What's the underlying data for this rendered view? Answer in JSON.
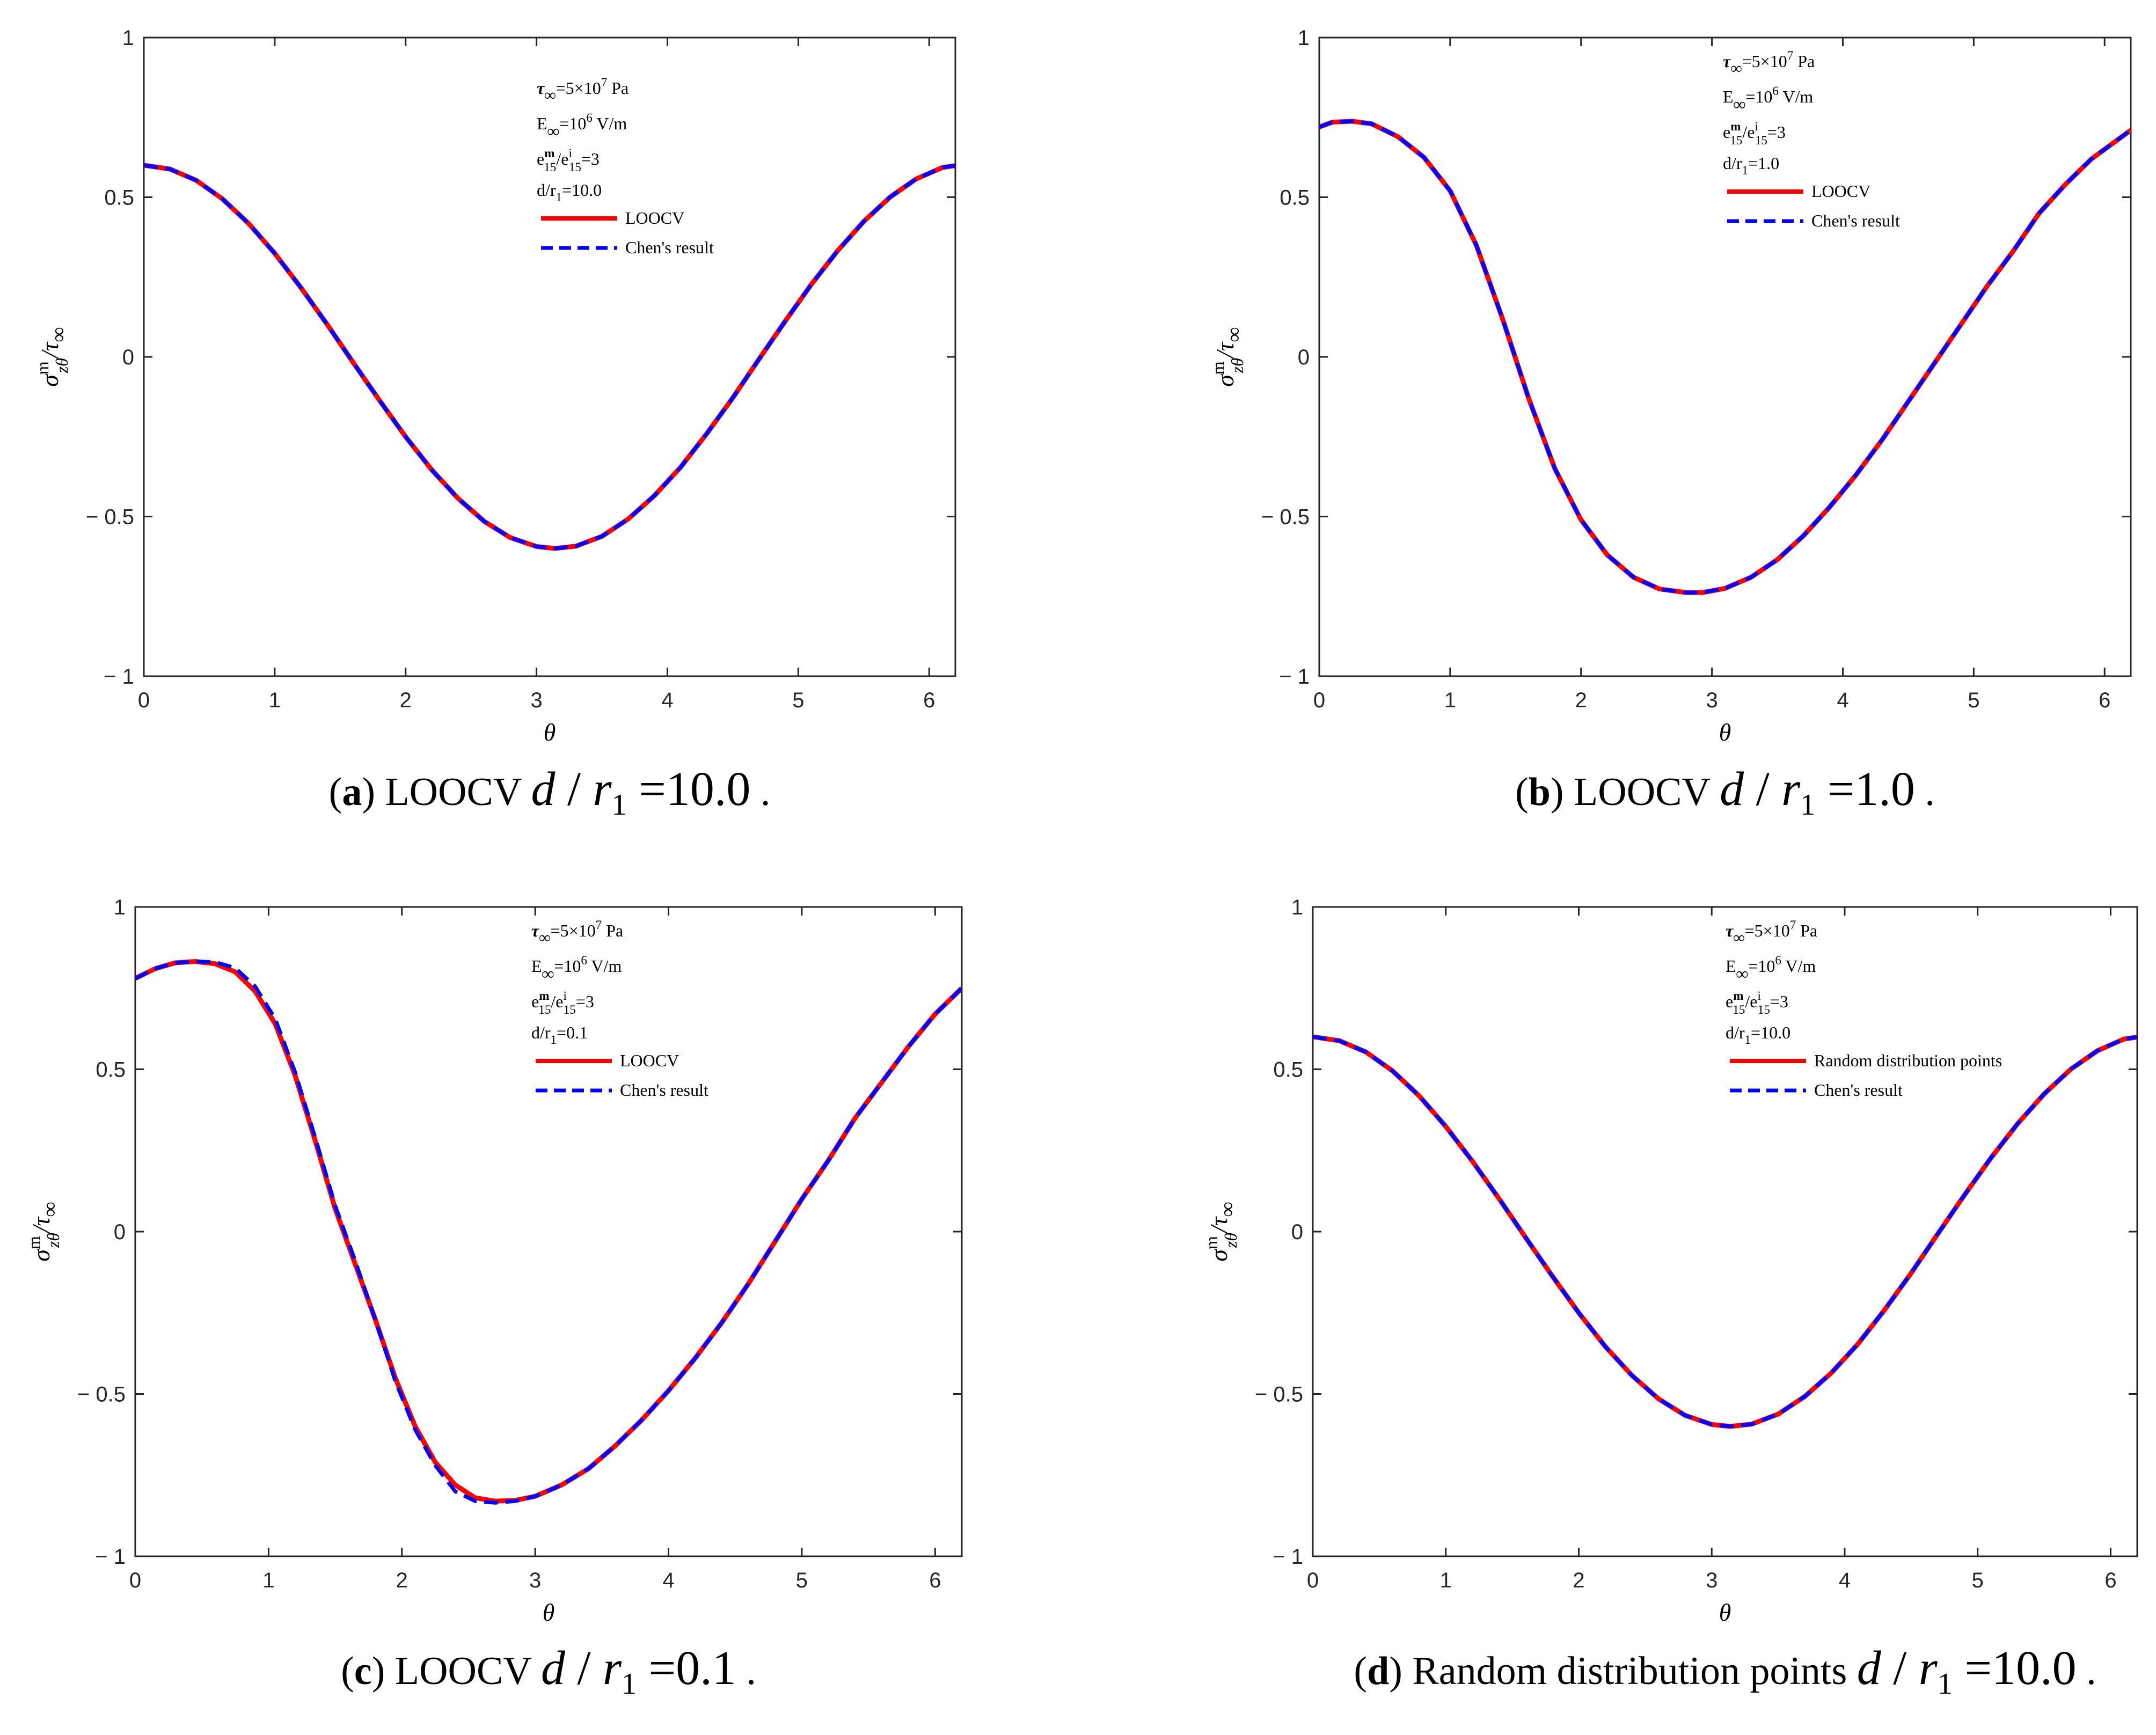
{
  "figure": {
    "background": "#ffffff"
  },
  "chart_data": [
    {
      "type": "line",
      "panel": "a",
      "caption": {
        "label": "a",
        "rest": "LOOCV",
        "var": "d",
        "slash": "/",
        "r": "r",
        "sub": "1",
        "eq": "=10.0",
        "dot": "."
      },
      "xlabel": "θ",
      "ylabel": {
        "main": "σ",
        "sup": "m",
        "sub": "zθ",
        "slash": "/τ",
        "denom_sub": "∞"
      },
      "xlim": [
        0,
        6.2
      ],
      "ylim": [
        -1,
        1
      ],
      "xticks": [
        0,
        1,
        2,
        3,
        4,
        5,
        6
      ],
      "yticks": [
        -1,
        -0.5,
        0,
        0.5,
        1
      ],
      "xtick_labels": [
        "0",
        "1",
        "2",
        "3",
        "4",
        "5",
        "6"
      ],
      "ytick_labels": [
        "− 1",
        "− 0.5",
        "0",
        "0.5",
        "1"
      ],
      "annotations": {
        "line1": "τ",
        "line1_sub": "∞",
        "line1_rest": "=5×10",
        "line1_sup": "7",
        "line1_unit": " Pa",
        "line2": "E",
        "line2_sub": "∞",
        "line2_rest": "=10",
        "line2_sup": "6",
        "line2_unit": " V/m",
        "line3": "e",
        "line3_sup": "m",
        "line3_sub": "15",
        "line3_mid": "/e",
        "line3_sup2": "i",
        "line3_sub2": "15",
        "line3_rest": "=3",
        "line4": "d/r",
        "line4_sub": "1",
        "line4_rest": "=10.0"
      },
      "series": [
        {
          "name": "LOOCV",
          "color": "#ff0000",
          "style": "solid",
          "x": [
            0,
            0.2,
            0.4,
            0.6,
            0.8,
            1.0,
            1.2,
            1.4,
            1.6,
            1.8,
            2.0,
            2.2,
            2.4,
            2.6,
            2.8,
            3.0,
            3.14,
            3.3,
            3.5,
            3.7,
            3.9,
            4.1,
            4.3,
            4.5,
            4.7,
            4.9,
            5.1,
            5.3,
            5.5,
            5.7,
            5.9,
            6.1,
            6.2
          ],
          "y": [
            0.6,
            0.588,
            0.553,
            0.495,
            0.418,
            0.324,
            0.217,
            0.102,
            -0.018,
            -0.136,
            -0.25,
            -0.354,
            -0.443,
            -0.515,
            -0.566,
            -0.594,
            -0.6,
            -0.593,
            -0.562,
            -0.508,
            -0.435,
            -0.346,
            -0.241,
            -0.128,
            -0.007,
            0.112,
            0.227,
            0.332,
            0.424,
            0.5,
            0.557,
            0.593,
            0.599
          ]
        },
        {
          "name": "Chen's result",
          "color": "#0000ff",
          "style": "dashed",
          "x": [
            0,
            0.2,
            0.4,
            0.6,
            0.8,
            1.0,
            1.2,
            1.4,
            1.6,
            1.8,
            2.0,
            2.2,
            2.4,
            2.6,
            2.8,
            3.0,
            3.14,
            3.3,
            3.5,
            3.7,
            3.9,
            4.1,
            4.3,
            4.5,
            4.7,
            4.9,
            5.1,
            5.3,
            5.5,
            5.7,
            5.9,
            6.1,
            6.2
          ],
          "y": [
            0.6,
            0.588,
            0.553,
            0.495,
            0.418,
            0.324,
            0.217,
            0.102,
            -0.018,
            -0.136,
            -0.25,
            -0.354,
            -0.443,
            -0.515,
            -0.566,
            -0.594,
            -0.6,
            -0.593,
            -0.562,
            -0.508,
            -0.435,
            -0.346,
            -0.241,
            -0.128,
            -0.007,
            0.112,
            0.227,
            0.332,
            0.424,
            0.5,
            0.557,
            0.593,
            0.599
          ]
        }
      ]
    },
    {
      "type": "line",
      "panel": "b",
      "caption": {
        "label": "b",
        "rest": "LOOCV",
        "var": "d",
        "slash": "/",
        "r": "r",
        "sub": "1",
        "eq": "=1.0",
        "dot": "."
      },
      "xlabel": "θ",
      "ylabel": {
        "main": "σ",
        "sup": "m",
        "sub": "zθ",
        "slash": "/τ",
        "denom_sub": "∞"
      },
      "xlim": [
        0,
        6.2
      ],
      "ylim": [
        -1,
        1
      ],
      "xticks": [
        0,
        1,
        2,
        3,
        4,
        5,
        6
      ],
      "yticks": [
        -1,
        -0.5,
        0,
        0.5,
        1
      ],
      "xtick_labels": [
        "0",
        "1",
        "2",
        "3",
        "4",
        "5",
        "6"
      ],
      "ytick_labels": [
        "− 1",
        "− 0.5",
        "0",
        "0.5",
        "1"
      ],
      "annotations": {
        "line1": "τ",
        "line1_sub": "∞",
        "line1_rest": "=5×10",
        "line1_sup": "7",
        "line1_unit": " Pa",
        "line2": "E",
        "line2_sub": "∞",
        "line2_rest": "=10",
        "line2_sup": "6",
        "line2_unit": " V/m",
        "line3": "e",
        "line3_sup": "m",
        "line3_sub": "15",
        "line3_mid": "/e",
        "line3_sup2": "i",
        "line3_sub2": "15",
        "line3_rest": "=3",
        "line4": "d/r",
        "line4_sub": "1",
        "line4_rest": "=1.0"
      },
      "series": [
        {
          "name": "LOOCV",
          "color": "#ff0000",
          "style": "solid",
          "x": [
            0,
            0.1,
            0.25,
            0.4,
            0.6,
            0.8,
            1.0,
            1.2,
            1.4,
            1.6,
            1.8,
            2.0,
            2.2,
            2.4,
            2.6,
            2.8,
            2.93,
            3.1,
            3.3,
            3.5,
            3.7,
            3.9,
            4.1,
            4.3,
            4.5,
            4.7,
            4.9,
            5.1,
            5.3,
            5.5,
            5.7,
            5.9,
            6.2
          ],
          "y": [
            0.72,
            0.735,
            0.738,
            0.73,
            0.69,
            0.625,
            0.52,
            0.35,
            0.12,
            -0.13,
            -0.35,
            -0.51,
            -0.62,
            -0.69,
            -0.727,
            -0.738,
            -0.738,
            -0.725,
            -0.69,
            -0.635,
            -0.56,
            -0.47,
            -0.37,
            -0.26,
            -0.14,
            -0.02,
            0.1,
            0.22,
            0.33,
            0.45,
            0.54,
            0.62,
            0.71
          ]
        },
        {
          "name": "Chen's result",
          "color": "#0000ff",
          "style": "dashed",
          "x": [
            0,
            0.1,
            0.25,
            0.4,
            0.6,
            0.8,
            1.0,
            1.2,
            1.4,
            1.6,
            1.8,
            2.0,
            2.2,
            2.4,
            2.6,
            2.8,
            2.93,
            3.1,
            3.3,
            3.5,
            3.7,
            3.9,
            4.1,
            4.3,
            4.5,
            4.7,
            4.9,
            5.1,
            5.3,
            5.5,
            5.7,
            5.9,
            6.2
          ],
          "y": [
            0.72,
            0.735,
            0.738,
            0.73,
            0.69,
            0.625,
            0.52,
            0.35,
            0.12,
            -0.13,
            -0.35,
            -0.51,
            -0.62,
            -0.69,
            -0.727,
            -0.738,
            -0.738,
            -0.725,
            -0.69,
            -0.635,
            -0.56,
            -0.47,
            -0.37,
            -0.26,
            -0.14,
            -0.02,
            0.1,
            0.22,
            0.33,
            0.45,
            0.54,
            0.62,
            0.71
          ]
        }
      ]
    },
    {
      "type": "line",
      "panel": "c",
      "caption": {
        "label": "c",
        "rest": "LOOCV",
        "var": "d",
        "slash": "/",
        "r": "r",
        "sub": "1",
        "eq": "=0.1",
        "dot": "."
      },
      "xlabel": "θ",
      "ylabel": {
        "main": "σ",
        "sup": "m",
        "sub": "zθ",
        "slash": "/τ",
        "denom_sub": "∞"
      },
      "xlim": [
        0,
        6.2
      ],
      "ylim": [
        -1,
        1
      ],
      "xticks": [
        0,
        1,
        2,
        3,
        4,
        5,
        6
      ],
      "yticks": [
        -1,
        -0.5,
        0,
        0.5,
        1
      ],
      "xtick_labels": [
        "0",
        "1",
        "2",
        "3",
        "4",
        "5",
        "6"
      ],
      "ytick_labels": [
        "− 1",
        "− 0.5",
        "0",
        "0.5",
        "1"
      ],
      "annotations": {
        "line1": "τ",
        "line1_sub": "∞",
        "line1_rest": "=5×10",
        "line1_sup": "7",
        "line1_unit": " Pa",
        "line2": "E",
        "line2_sub": "∞",
        "line2_rest": "=10",
        "line2_sup": "6",
        "line2_unit": " V/m",
        "line3": "e",
        "line3_sup": "m",
        "line3_sub": "15",
        "line3_mid": "/e",
        "line3_sup2": "i",
        "line3_sub2": "15",
        "line3_rest": "=3",
        "line4": "d/r",
        "line4_sub": "1",
        "line4_rest": "=0.1"
      },
      "series": [
        {
          "name": "LOOCV",
          "color": "#ff0000",
          "style": "solid",
          "x": [
            0,
            0.15,
            0.3,
            0.45,
            0.6,
            0.75,
            0.9,
            1.05,
            1.2,
            1.35,
            1.5,
            1.65,
            1.8,
            1.95,
            2.1,
            2.25,
            2.4,
            2.55,
            2.7,
            2.85,
            3.0,
            3.2,
            3.4,
            3.6,
            3.8,
            4.0,
            4.2,
            4.4,
            4.6,
            4.8,
            5.0,
            5.2,
            5.4,
            5.6,
            5.8,
            6.0,
            6.2
          ],
          "y": [
            0.78,
            0.81,
            0.828,
            0.832,
            0.825,
            0.8,
            0.74,
            0.64,
            0.48,
            0.28,
            0.07,
            -0.1,
            -0.27,
            -0.45,
            -0.6,
            -0.71,
            -0.78,
            -0.82,
            -0.83,
            -0.828,
            -0.815,
            -0.78,
            -0.73,
            -0.66,
            -0.58,
            -0.49,
            -0.39,
            -0.28,
            -0.16,
            -0.03,
            0.1,
            0.22,
            0.35,
            0.46,
            0.57,
            0.67,
            0.75
          ]
        },
        {
          "name": "Chen's result",
          "color": "#0000ff",
          "style": "dashed",
          "x": [
            0,
            0.15,
            0.3,
            0.45,
            0.6,
            0.75,
            0.9,
            1.05,
            1.2,
            1.35,
            1.5,
            1.65,
            1.8,
            1.95,
            2.1,
            2.25,
            2.4,
            2.55,
            2.7,
            2.85,
            3.0,
            3.2,
            3.4,
            3.6,
            3.8,
            4.0,
            4.2,
            4.4,
            4.6,
            4.8,
            5.0,
            5.2,
            5.4,
            5.6,
            5.8,
            6.0,
            6.2
          ],
          "y": [
            0.78,
            0.81,
            0.828,
            0.832,
            0.83,
            0.812,
            0.755,
            0.655,
            0.49,
            0.29,
            0.08,
            -0.09,
            -0.27,
            -0.46,
            -0.61,
            -0.72,
            -0.8,
            -0.83,
            -0.835,
            -0.83,
            -0.815,
            -0.78,
            -0.73,
            -0.66,
            -0.58,
            -0.49,
            -0.39,
            -0.28,
            -0.16,
            -0.03,
            0.1,
            0.22,
            0.35,
            0.46,
            0.57,
            0.67,
            0.75
          ]
        }
      ]
    },
    {
      "type": "line",
      "panel": "d",
      "caption": {
        "label": "d",
        "rest": "Random distribution points",
        "var": "d",
        "slash": "/",
        "r": "r",
        "sub": "1",
        "eq": "=10.0",
        "dot": "."
      },
      "xlabel": "θ",
      "ylabel": {
        "main": "σ",
        "sup": "m",
        "sub": "zθ",
        "slash": "/τ",
        "denom_sub": "∞"
      },
      "xlim": [
        0,
        6.2
      ],
      "ylim": [
        -1,
        1
      ],
      "xticks": [
        0,
        1,
        2,
        3,
        4,
        5,
        6
      ],
      "yticks": [
        -1,
        -0.5,
        0,
        0.5,
        1
      ],
      "xtick_labels": [
        "0",
        "1",
        "2",
        "3",
        "4",
        "5",
        "6"
      ],
      "ytick_labels": [
        "− 1",
        "− 0.5",
        "0",
        "0.5",
        "1"
      ],
      "annotations": {
        "line1": "τ",
        "line1_sub": "∞",
        "line1_rest": "=5×10",
        "line1_sup": "7",
        "line1_unit": " Pa",
        "line2": "E",
        "line2_sub": "∞",
        "line2_rest": "=10",
        "line2_sup": "6",
        "line2_unit": " V/m",
        "line3": "e",
        "line3_sup": "m",
        "line3_sub": "15",
        "line3_mid": "/e",
        "line3_sup2": "i",
        "line3_sub2": "15",
        "line3_rest": "=3",
        "line4": "d/r",
        "line4_sub": "1",
        "line4_rest": "=10.0"
      },
      "series": [
        {
          "name": "Random distribution points",
          "color": "#ff0000",
          "style": "solid",
          "x": [
            0,
            0.2,
            0.4,
            0.6,
            0.8,
            1.0,
            1.2,
            1.4,
            1.6,
            1.8,
            2.0,
            2.2,
            2.4,
            2.6,
            2.8,
            3.0,
            3.14,
            3.3,
            3.5,
            3.7,
            3.9,
            4.1,
            4.3,
            4.5,
            4.7,
            4.9,
            5.1,
            5.3,
            5.5,
            5.7,
            5.9,
            6.1,
            6.2
          ],
          "y": [
            0.6,
            0.588,
            0.553,
            0.495,
            0.418,
            0.324,
            0.217,
            0.102,
            -0.018,
            -0.136,
            -0.25,
            -0.354,
            -0.443,
            -0.515,
            -0.566,
            -0.594,
            -0.6,
            -0.593,
            -0.562,
            -0.508,
            -0.435,
            -0.346,
            -0.241,
            -0.128,
            -0.007,
            0.112,
            0.227,
            0.332,
            0.424,
            0.5,
            0.557,
            0.593,
            0.599
          ]
        },
        {
          "name": "Chen's result",
          "color": "#0000ff",
          "style": "dashed",
          "x": [
            0,
            0.2,
            0.4,
            0.6,
            0.8,
            1.0,
            1.2,
            1.4,
            1.6,
            1.8,
            2.0,
            2.2,
            2.4,
            2.6,
            2.8,
            3.0,
            3.14,
            3.3,
            3.5,
            3.7,
            3.9,
            4.1,
            4.3,
            4.5,
            4.7,
            4.9,
            5.1,
            5.3,
            5.5,
            5.7,
            5.9,
            6.1,
            6.2
          ],
          "y": [
            0.6,
            0.588,
            0.553,
            0.495,
            0.418,
            0.324,
            0.217,
            0.102,
            -0.018,
            -0.136,
            -0.25,
            -0.354,
            -0.443,
            -0.515,
            -0.566,
            -0.594,
            -0.6,
            -0.593,
            -0.562,
            -0.508,
            -0.435,
            -0.346,
            -0.241,
            -0.128,
            -0.007,
            0.112,
            0.227,
            0.332,
            0.424,
            0.5,
            0.557,
            0.593,
            0.599
          ]
        }
      ]
    }
  ]
}
